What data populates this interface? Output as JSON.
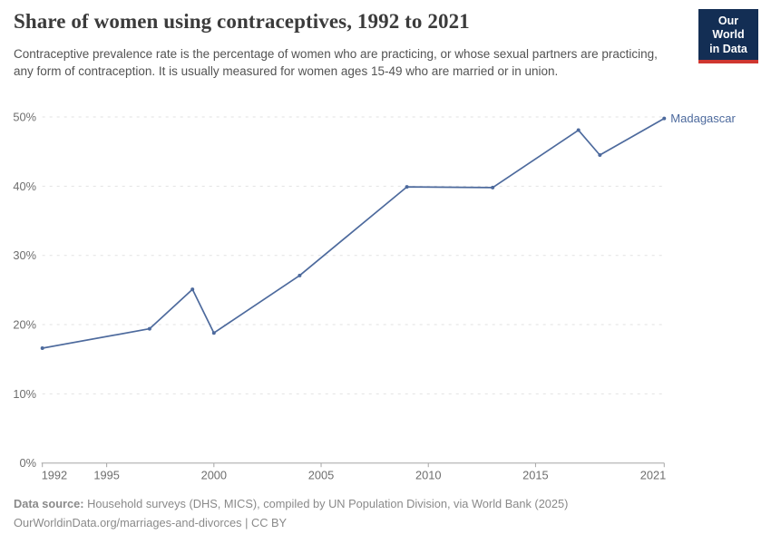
{
  "header": {
    "title": "Share of women using contraceptives, 1992 to 2021",
    "subtitle": "Contraceptive prevalence rate is the percentage of women who are practicing, or whose sexual partners are practicing, any form of contraception. It is usually measured for women ages 15-49 who are married or in union.",
    "logo": {
      "line1": "Our World",
      "line2": "in Data",
      "bg_color": "#132e54",
      "bar_color": "#cf3730"
    }
  },
  "chart_data": {
    "type": "line",
    "title": "Share of women using contraceptives, 1992 to 2021",
    "x": [
      1992,
      1997,
      1999,
      2000,
      2004,
      2009,
      2013,
      2017,
      2018,
      2021
    ],
    "series": [
      {
        "name": "Madagascar",
        "color": "#4d6a9d",
        "values": [
          16.6,
          19.4,
          25.1,
          18.8,
          27.1,
          39.9,
          39.8,
          48.1,
          44.5,
          49.8
        ]
      }
    ],
    "xlabel": "",
    "ylabel": "",
    "xlim": [
      1992,
      2021
    ],
    "ylim": [
      0,
      50
    ],
    "x_ticks": [
      1992,
      1995,
      2000,
      2005,
      2010,
      2015,
      2021
    ],
    "y_ticks": [
      0,
      10,
      20,
      30,
      40,
      50
    ],
    "y_tick_suffix": "%",
    "grid": "horizontal dashed",
    "legend": "line-end label"
  },
  "footer": {
    "source_label": "Data source:",
    "source_text": " Household surveys (DHS, MICS), compiled by UN Population Division, via World Bank (2025)",
    "credit_url": "OurWorldinData.org/marriages-and-divorces",
    "separator": " | ",
    "license": "CC BY"
  }
}
